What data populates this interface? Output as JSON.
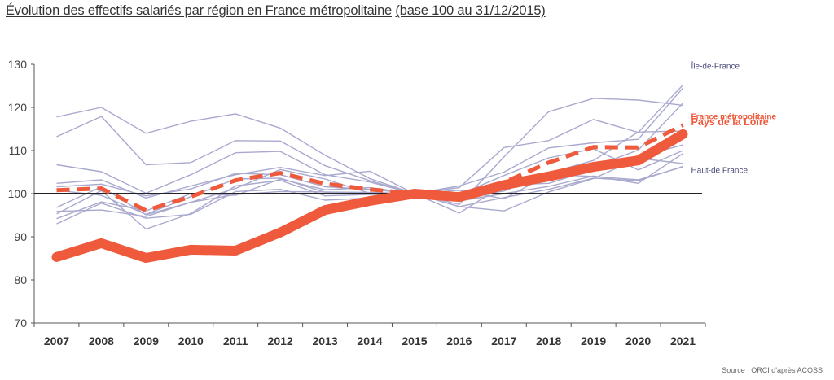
{
  "title": "Évolution des effectifs salariés par région en France métropolitaine",
  "subtitle": "(base 100 au 31/12/2015)",
  "source": "Source : ORCI d'après ACOSS",
  "colors": {
    "regions": "#a9a9cf",
    "highlight": "#ee5a3b",
    "baseline": "#222222",
    "axis": "#555555",
    "label_regions": "#4a4a7a"
  },
  "chart_data": {
    "type": "line",
    "title": "Évolution des effectifs salariés par région en France métropolitaine (base 100 au 31/12/2015)",
    "xlabel": "",
    "ylabel": "",
    "ylim": [
      70,
      130
    ],
    "yticks": [
      70,
      80,
      90,
      100,
      110,
      120,
      130
    ],
    "x": [
      "2007",
      "2008",
      "2009",
      "2010",
      "2011",
      "2012",
      "2013",
      "2014",
      "2015",
      "2016",
      "2017",
      "2018",
      "2019",
      "2020",
      "2021"
    ],
    "grid": false,
    "baseline": 100,
    "series": [
      {
        "name": "Pays de la Loire",
        "style": "thick",
        "values": [
          85.3,
          88.5,
          85.1,
          87.0,
          86.8,
          91.0,
          96.2,
          98.3,
          100,
          99.2,
          102.0,
          104.0,
          106.2,
          107.7,
          113.8
        ]
      },
      {
        "name": "France métropolitaine",
        "style": "dashed",
        "values": [
          100.8,
          101.2,
          96.1,
          99.3,
          103.1,
          104.8,
          102.3,
          101.0,
          100,
          99.3,
          102.6,
          107.2,
          110.8,
          110.7,
          115.9
        ]
      },
      {
        "name": "Île-de-France",
        "style": "thin",
        "values": [
          113.2,
          117.9,
          106.7,
          107.2,
          112.3,
          112.2,
          106.5,
          103.0,
          100,
          101.4,
          110.7,
          112.3,
          117.2,
          114.2,
          125.2
        ]
      },
      {
        "name": "Haut-de France",
        "style": "thin",
        "values": [
          95.9,
          96.2,
          94.7,
          98.0,
          99.8,
          100.5,
          100.4,
          100.3,
          100,
          97.0,
          99.1,
          101.0,
          103.6,
          103.0,
          106.3
        ]
      },
      {
        "name": "",
        "style": "thin",
        "values": [
          117.8,
          120.0,
          114.0,
          116.8,
          118.5,
          115.2,
          108.9,
          103.5,
          100,
          97.5,
          108.5,
          119.0,
          122.1,
          121.7,
          120.5
        ]
      },
      {
        "name": "",
        "style": "thin",
        "values": [
          106.7,
          105.1,
          100.1,
          104.4,
          109.5,
          109.8,
          104.4,
          102.7,
          100,
          101.8,
          105.0,
          110.6,
          111.8,
          112.6,
          124.5
        ]
      },
      {
        "name": "",
        "style": "thin",
        "values": [
          102.4,
          103.2,
          99.0,
          101.8,
          104.4,
          106.1,
          104.2,
          105.2,
          100,
          98.3,
          100.0,
          101.7,
          104.1,
          102.4,
          109.3
        ]
      },
      {
        "name": "",
        "style": "thin",
        "values": [
          101.6,
          102.2,
          99.5,
          101.1,
          104.7,
          104.4,
          101.6,
          101.0,
          100,
          100.8,
          98.8,
          104.4,
          104.0,
          103.2,
          106.2
        ]
      },
      {
        "name": "",
        "style": "thin",
        "values": [
          100.8,
          99.6,
          95.2,
          99.3,
          103.4,
          103.6,
          100.3,
          100.2,
          100,
          99.8,
          104.2,
          108.3,
          110.4,
          105.5,
          110.0
        ]
      },
      {
        "name": "",
        "style": "thin",
        "values": [
          95.3,
          100.7,
          91.8,
          95.4,
          101.8,
          103.1,
          99.5,
          99.8,
          100,
          99.2,
          101.1,
          103.0,
          106.3,
          110.1,
          121.0
        ]
      },
      {
        "name": "",
        "style": "thin",
        "values": [
          93.0,
          97.8,
          94.3,
          95.2,
          100.5,
          101.0,
          98.5,
          99.0,
          100,
          97.0,
          96.0,
          100.4,
          103.5,
          108.2,
          107.0
        ]
      },
      {
        "name": "",
        "style": "thin",
        "values": [
          94.2,
          98.1,
          96.0,
          100.0,
          99.6,
          103.4,
          100.9,
          101.4,
          100,
          99.0,
          100.6,
          104.8,
          107.7,
          114.3,
          114.5
        ]
      },
      {
        "name": "",
        "style": "thin",
        "values": [
          96.8,
          101.6,
          95.1,
          98.0,
          101.2,
          105.6,
          103.4,
          100.1,
          100,
          95.5,
          102.0,
          102.4,
          105.6,
          108.5,
          111.3
        ]
      }
    ],
    "labels": {
      "Île-de-France": "Île-de-France",
      "France métropolitaine": "France métropolitaine",
      "Pays de la Loire": "Pays de la Loire",
      "Haut-de France": "Haut-de France"
    }
  }
}
